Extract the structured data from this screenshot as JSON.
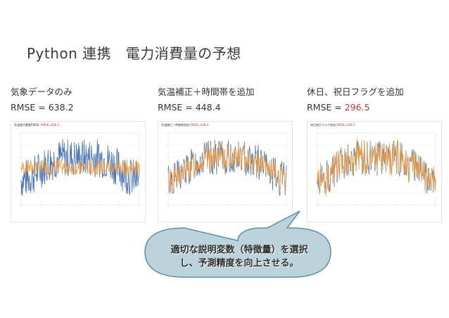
{
  "slide": {
    "title": "Python 連携　電力消費量の予想"
  },
  "columns": [
    {
      "caption": "気象データのみ",
      "rmse_prefix": "RMSE = ",
      "rmse_value": "638.2",
      "rmse_highlight": false,
      "chart_header_prefix": "気温電力需要RMSE: ",
      "chart_header_value": "RMSE=638.2"
    },
    {
      "caption": "気温補正＋時間帯を追加",
      "rmse_prefix": "RMSE = ",
      "rmse_value": "448.4",
      "rmse_highlight": false,
      "chart_header_prefix": "気温補正＋時間帯追加 ",
      "chart_header_value": "RMSE=448.4"
    },
    {
      "caption": "休日、祝日フラグを追加",
      "rmse_prefix": "RMSE = ",
      "rmse_value": "296.5",
      "rmse_highlight": true,
      "chart_header_prefix": "休日祝日フラグ追加 ",
      "chart_header_value": "RMSE=296.5"
    }
  ],
  "callout": {
    "line1": "適切な説明変数（特徴量）を選択",
    "line2": "し、予測精度を向上させる。"
  },
  "colors": {
    "actual_series": "#4a74b4",
    "predicted_series": "#f39a38",
    "callout_fill": "#bcd3dc",
    "callout_stroke": "#5f8fa3",
    "rmse_highlight": "#c0392b"
  }
}
